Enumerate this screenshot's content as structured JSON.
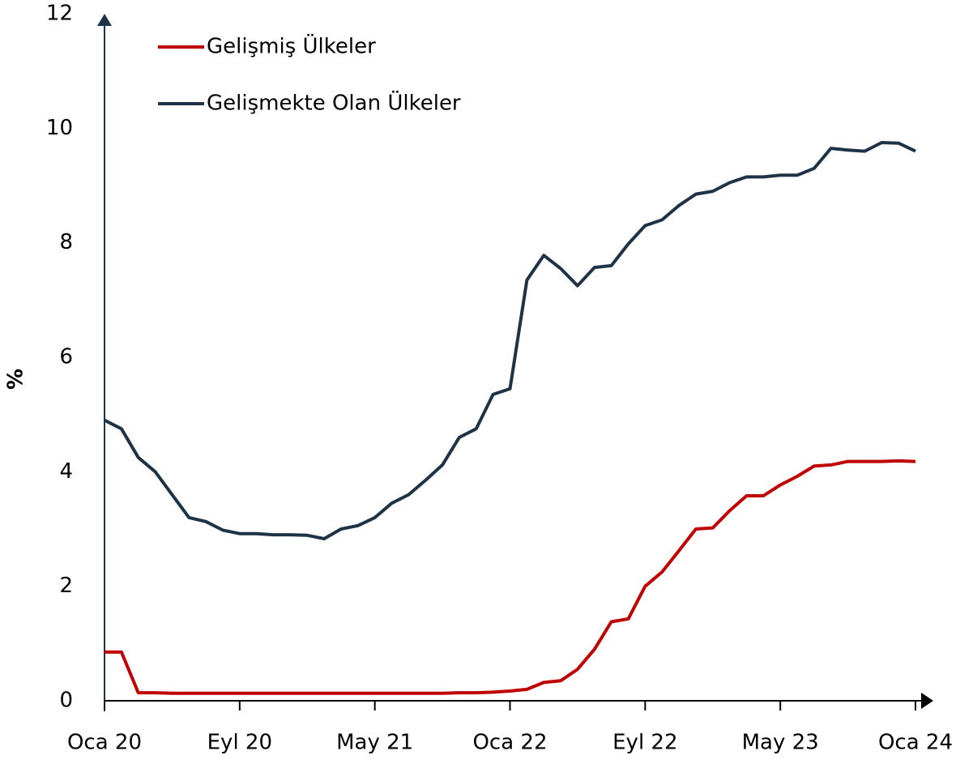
{
  "chart_data": {
    "type": "line",
    "y_label": "%",
    "categories": [
      "Oca 20",
      null,
      null,
      null,
      null,
      null,
      null,
      null,
      "Eyl 20",
      null,
      null,
      null,
      null,
      null,
      null,
      null,
      "May 21",
      null,
      null,
      null,
      null,
      null,
      null,
      null,
      "Oca 22",
      null,
      null,
      null,
      null,
      null,
      null,
      null,
      "Eyl 22",
      null,
      null,
      null,
      null,
      null,
      null,
      null,
      "May 23",
      null,
      null,
      null,
      null,
      null,
      null,
      null,
      "Oca 24"
    ],
    "series": [
      {
        "name": "Gelişmiş Ülkeler",
        "color": "#c00000",
        "values": [
          0.85,
          0.85,
          0.14,
          0.14,
          0.13,
          0.13,
          0.13,
          0.13,
          0.13,
          0.13,
          0.13,
          0.13,
          0.13,
          0.13,
          0.13,
          0.13,
          0.13,
          0.13,
          0.13,
          0.13,
          0.13,
          0.14,
          0.14,
          0.15,
          0.17,
          0.2,
          0.32,
          0.35,
          0.55,
          0.9,
          1.38,
          1.43,
          2.0,
          2.25,
          2.62,
          3.0,
          3.02,
          3.32,
          3.58,
          3.58,
          3.77,
          3.92,
          4.1,
          4.12,
          4.18,
          4.18,
          4.18,
          4.19,
          4.18
        ]
      },
      {
        "name": "Gelişmekte Olan Ülkeler",
        "color": "#1f3347",
        "values": [
          4.9,
          4.75,
          4.25,
          4.0,
          3.6,
          3.2,
          3.13,
          2.98,
          2.92,
          2.92,
          2.9,
          2.9,
          2.89,
          2.83,
          3.0,
          3.06,
          3.2,
          3.45,
          3.6,
          3.85,
          4.12,
          4.6,
          4.75,
          5.35,
          5.45,
          7.35,
          7.78,
          7.55,
          7.25,
          7.57,
          7.6,
          7.98,
          8.3,
          8.4,
          8.65,
          8.85,
          8.9,
          9.05,
          9.15,
          9.15,
          9.18,
          9.18,
          9.3,
          9.65,
          9.62,
          9.6,
          9.75,
          9.74,
          9.6
        ]
      }
    ],
    "ylim": [
      0,
      12
    ],
    "yticks": [
      0,
      2,
      4,
      6,
      8,
      10,
      12
    ],
    "grid": false,
    "legend": "top-left"
  }
}
